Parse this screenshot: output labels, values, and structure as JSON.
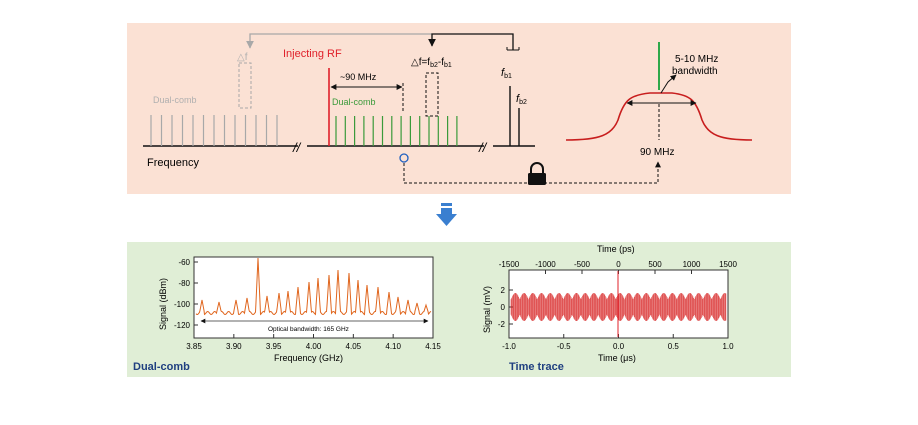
{
  "top": {
    "delta_f_gray": "△f",
    "injecting_rf": "Injecting RF",
    "dual_comb_gray": "Dual-comb",
    "dual_comb_green": "Dual-comb",
    "spacing": "~90 MHz",
    "delta_f_eq": "△f=f",
    "delta_f_eq_sub1": "b2",
    "delta_f_eq_minus": "-f",
    "delta_f_eq_sub2": "b1",
    "fb1": "f",
    "fb1_sub": "b1",
    "fb2": "f",
    "fb2_sub": "b2",
    "frequency": "Frequency",
    "bandwidth_line1": "5-10 MHz",
    "bandwidth_line2": "bandwidth",
    "ninety": "90 MHz",
    "colors": {
      "red": "#e0202a",
      "green": "#3a9a3a",
      "gray": "#a8a8a8",
      "dark": "#111111",
      "blue": "#1f5fbf"
    }
  },
  "arrow": {
    "color": "#3a7fd0"
  },
  "bottom_left": {
    "caption": "Dual-comb",
    "ylabel": "Signal (dBm)",
    "xlabel": "Frequency (GHz)",
    "yticks": [
      "-60",
      "-80",
      "-100",
      "-120"
    ],
    "xticks": [
      "3.85",
      "3.90",
      "3.95",
      "4.00",
      "4.05",
      "4.10",
      "4.15"
    ],
    "annotation": "Optical bandwidth: 165 GHz"
  },
  "bottom_right": {
    "caption": "Time trace",
    "top_axis_label": "Time (ps)",
    "top_ticks": [
      "-1500",
      "-1000",
      "-500",
      "0",
      "500",
      "1000",
      "1500"
    ],
    "ylabel": "Signal (mV)",
    "yticks": [
      "2",
      "0",
      "-2"
    ],
    "xlabel": "Time (μs)",
    "xticks": [
      "-1.0",
      "-0.5",
      "0.0",
      "0.5",
      "1.0"
    ]
  }
}
